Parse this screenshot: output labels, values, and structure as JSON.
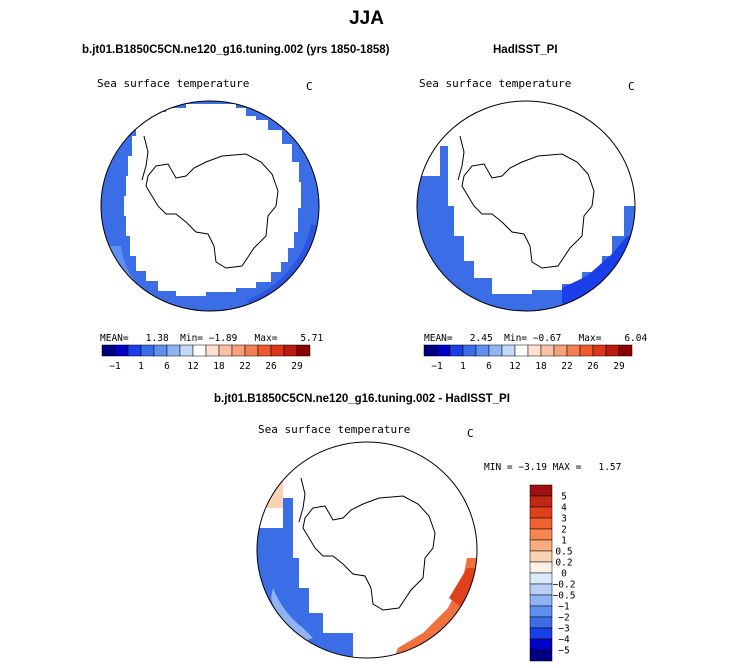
{
  "page": {
    "title": "JJA",
    "left_case": "b.jt01.B1850C5CN.ne120_g16.tuning.002 (yrs 1850-1858)",
    "right_case": "HadISST_PI",
    "diff_case": "b.jt01.B1850C5CN.ne120_g16.tuning.002 - HadISST_PI"
  },
  "colors": {
    "deep_blue": "#0000a0",
    "mid_blue": "#2255e0",
    "sea_blue": "#3a6de6",
    "light_blue": "#9bbcf0",
    "dark_red": "#8b0000",
    "orange": "#f07040"
  },
  "chart_data": [
    {
      "type": "polar_map",
      "id": "model",
      "title": "Sea surface temperature",
      "units": "C",
      "stats": {
        "mean_label": "MEAN=",
        "mean": "1.38",
        "min_label": "Min=",
        "min": "−1.89",
        "max_label": "Max=",
        "max": "5.71"
      },
      "colorbar_labels": [
        "−1",
        "1",
        "6",
        "12",
        "18",
        "22",
        "26",
        "29"
      ],
      "colorbar_colors": [
        "#000080",
        "#0000c8",
        "#1a3ee8",
        "#3a6de6",
        "#5f8ff0",
        "#8fb3f5",
        "#c4d8fa",
        "#ffffff",
        "#fde0cf",
        "#fbc0a4",
        "#f7a07a",
        "#f37e52",
        "#ee5a2e",
        "#dc3618",
        "#b81c0a",
        "#8b0000"
      ]
    },
    {
      "type": "polar_map",
      "id": "obs",
      "title": "Sea surface temperature",
      "units": "C",
      "stats": {
        "mean_label": "MEAN=",
        "mean": "2.45",
        "min_label": "Min=",
        "min": "−0.67",
        "max_label": "Max=",
        "max": "6.04"
      },
      "colorbar_labels": [
        "−1",
        "1",
        "6",
        "12",
        "18",
        "22",
        "26",
        "29"
      ],
      "colorbar_colors": [
        "#000080",
        "#0000c8",
        "#1a3ee8",
        "#3a6de6",
        "#5f8ff0",
        "#8fb3f5",
        "#c4d8fa",
        "#ffffff",
        "#fde0cf",
        "#fbc0a4",
        "#f7a07a",
        "#f37e52",
        "#ee5a2e",
        "#dc3618",
        "#b81c0a",
        "#8b0000"
      ]
    },
    {
      "type": "polar_map",
      "id": "diff",
      "title": "Sea surface temperature",
      "units": "C",
      "stats": {
        "min_label": "MIN =",
        "min": "−3.19",
        "max_label": "MAX =",
        "max": "1.57"
      },
      "colorbar_labels": [
        "5",
        "4",
        "3",
        "2",
        "1",
        "0.5",
        "0.2",
        "0",
        "−0.2",
        "−0.5",
        "−1",
        "−2",
        "−3",
        "−4",
        "−5"
      ],
      "colorbar_colors": [
        "#a01010",
        "#c02814",
        "#e0401c",
        "#f06030",
        "#f5874e",
        "#f9ad7f",
        "#fcd2b4",
        "#fdf0e4",
        "#dceaf8",
        "#b8d0f5",
        "#8fb3f5",
        "#5f8ff0",
        "#3a6de6",
        "#1a3ee8",
        "#0000c8",
        "#000080"
      ]
    }
  ]
}
